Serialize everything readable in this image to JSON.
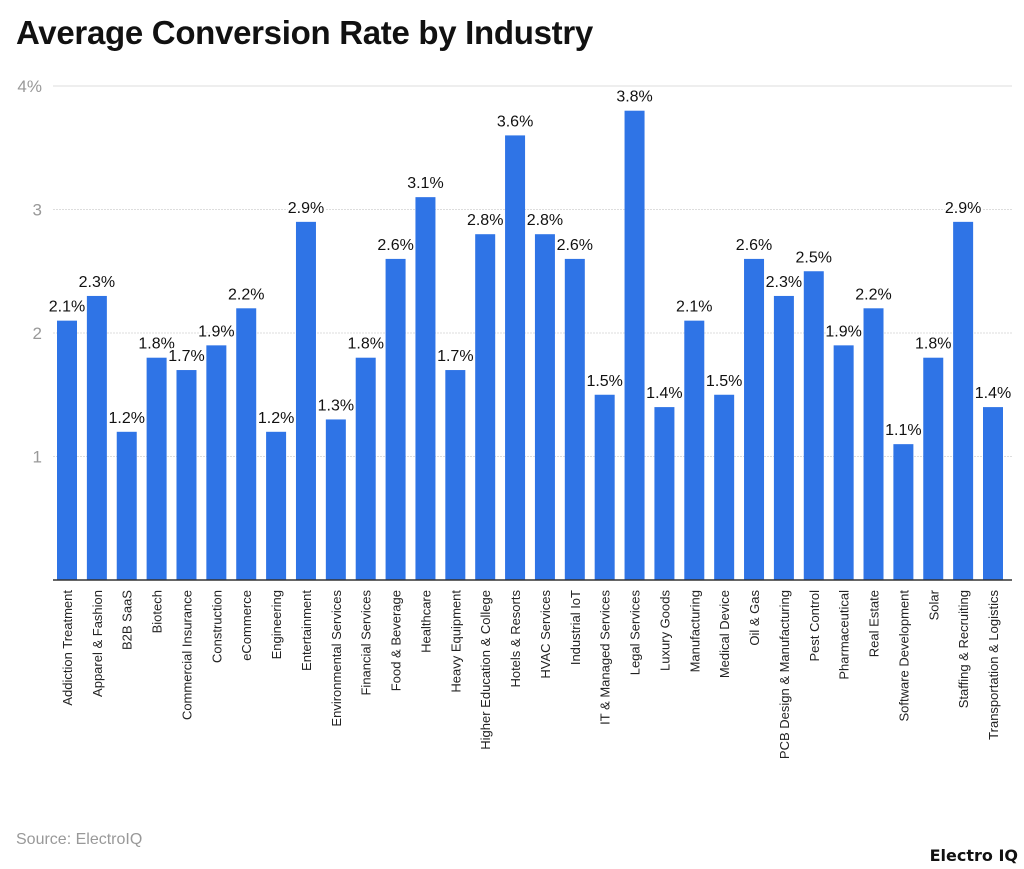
{
  "chart_data": {
    "type": "bar",
    "title": "Average Conversion Rate by Industry",
    "xlabel": "",
    "ylabel": "",
    "ylim": [
      0,
      4
    ],
    "yticks": [
      "1",
      "2",
      "3",
      "4%"
    ],
    "grid": true,
    "bar_color": "#2f74e6",
    "categories": [
      "Addiction Treatment",
      "Apparel & Fashion",
      "B2B SaaS",
      "Biotech",
      "Commercial Insurance",
      "Construction",
      "eCommerce",
      "Engineering",
      "Entertainment",
      "Environmental Services",
      "Financial Services",
      "Food & Beverage",
      "Healthcare",
      "Heavy Equipment",
      "Higher Education & College",
      "Hotels & Resorts",
      "HVAC Services",
      "Industrial IoT",
      "IT & Managed Services",
      "Legal Services",
      "Luxury Goods",
      "Manufacturing",
      "Medical Device",
      "Oil & Gas",
      "PCB Design & Manufacturing",
      "Pest Control",
      "Pharmaceutical",
      "Real Estate",
      "Software Development",
      "Solar",
      "Staffing & Recruiting",
      "Transportation & Logistics"
    ],
    "values": [
      2.1,
      2.3,
      1.2,
      1.8,
      1.7,
      1.9,
      2.2,
      1.2,
      2.9,
      1.3,
      1.8,
      2.6,
      3.1,
      1.7,
      2.8,
      3.6,
      2.8,
      2.6,
      1.5,
      3.8,
      1.4,
      2.1,
      1.5,
      2.6,
      2.3,
      2.5,
      1.9,
      2.2,
      1.1,
      1.8,
      2.9,
      1.4
    ],
    "value_suffix": "%"
  },
  "source": "Source: ElectroIQ",
  "logo": "Electro IQ"
}
